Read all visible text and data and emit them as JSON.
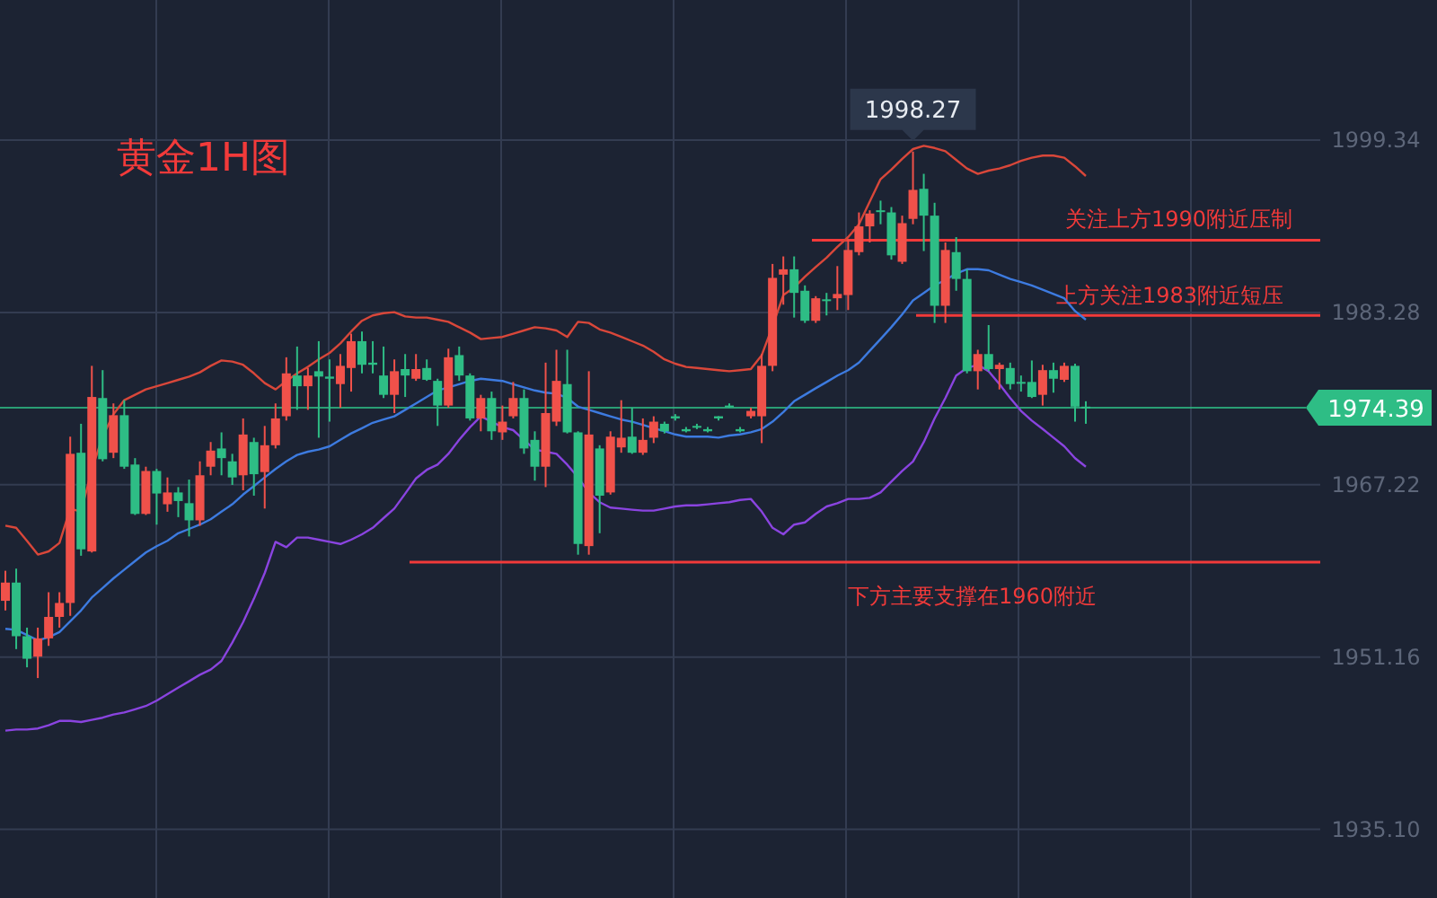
{
  "chart_data": {
    "type": "candlestick",
    "title": "黄金1H图",
    "categories": [
      null,
      null,
      null,
      null,
      null,
      null,
      null,
      null,
      null,
      null,
      null,
      null,
      null,
      null,
      null,
      null,
      null,
      null,
      null,
      null,
      null,
      null,
      null,
      null,
      null,
      null,
      null,
      null,
      null,
      null,
      null,
      null,
      null,
      null,
      null,
      null,
      null,
      null,
      null,
      null,
      null,
      null,
      null,
      null,
      null,
      null,
      null,
      null,
      null,
      null,
      null,
      null,
      null,
      null,
      null,
      null,
      null,
      null,
      null,
      null,
      null,
      null,
      null,
      null,
      null,
      null,
      null,
      null,
      null,
      null,
      null,
      null,
      null,
      null,
      null,
      null,
      null,
      null,
      null,
      null,
      null,
      null,
      null,
      null,
      null,
      null,
      null,
      null,
      null,
      null,
      null,
      null,
      null,
      null,
      null,
      null,
      null,
      null,
      null,
      null,
      null,
      null,
      null,
      null,
      null,
      null,
      null,
      null,
      null,
      null,
      null,
      null,
      null,
      null,
      null,
      null,
      null,
      null,
      null,
      null,
      null,
      null,
      null,
      null,
      null,
      null,
      null,
      null,
      null,
      null,
      null,
      null,
      null
    ],
    "ohlc": [
      [
        1956.4,
        1959.2,
        1955.5,
        1958.1
      ],
      [
        1958.1,
        1959.4,
        1951.9,
        1953.1
      ],
      [
        1953.1,
        1953.9,
        1950.2,
        1951.0
      ],
      [
        1951.2,
        1953.9,
        1949.2,
        1952.9
      ],
      [
        1952.9,
        1957.2,
        1952.2,
        1954.9
      ],
      [
        1954.9,
        1957.2,
        1953.9,
        1956.2
      ],
      [
        1956.2,
        1971.7,
        1955.0,
        1970.1
      ],
      [
        1970.2,
        1972.9,
        1960.6,
        1961.2
      ],
      [
        1961.0,
        1978.3,
        1960.9,
        1975.4
      ],
      [
        1975.3,
        1977.9,
        1969.4,
        1969.6
      ],
      [
        1970.2,
        1974.8,
        1969.7,
        1973.7
      ],
      [
        1973.7,
        1975.1,
        1968.7,
        1968.9
      ],
      [
        1969.1,
        1969.7,
        1964.4,
        1964.5
      ],
      [
        1964.5,
        1968.9,
        1964.4,
        1968.5
      ],
      [
        1968.5,
        1968.7,
        1963.5,
        1966.4
      ],
      [
        1965.4,
        1967.9,
        1964.7,
        1966.5
      ],
      [
        1966.5,
        1967.0,
        1964.2,
        1965.7
      ],
      [
        1965.5,
        1967.7,
        1962.4,
        1963.9
      ],
      [
        1963.9,
        1969.4,
        1963.4,
        1968.1
      ],
      [
        1968.9,
        1971.2,
        1968.1,
        1970.4
      ],
      [
        1970.6,
        1972.1,
        1968.1,
        1969.7
      ],
      [
        1969.4,
        1970.1,
        1967.2,
        1967.9
      ],
      [
        1968.1,
        1973.4,
        1966.7,
        1971.9
      ],
      [
        1971.2,
        1971.6,
        1966.2,
        1968.2
      ],
      [
        1968.4,
        1972.7,
        1965.0,
        1970.9
      ],
      [
        1970.9,
        1974.8,
        1970.6,
        1973.4
      ],
      [
        1973.6,
        1979.1,
        1973.2,
        1977.6
      ],
      [
        1977.4,
        1980.1,
        1974.2,
        1976.4
      ],
      [
        1976.4,
        1978.1,
        1974.2,
        1977.4
      ],
      [
        1977.8,
        1980.6,
        1971.6,
        1977.3
      ],
      [
        1977.3,
        1978.9,
        1973.1,
        1977.1
      ],
      [
        1976.6,
        1979.4,
        1974.4,
        1978.3
      ],
      [
        1978.1,
        1981.3,
        1975.9,
        1980.6
      ],
      [
        1980.6,
        1981.5,
        1977.6,
        1978.4
      ],
      [
        1978.6,
        1980.6,
        1977.6,
        1978.4
      ],
      [
        1977.4,
        1980.1,
        1975.3,
        1975.6
      ],
      [
        1975.6,
        1978.9,
        1973.9,
        1977.8
      ],
      [
        1978.0,
        1979.4,
        1975.4,
        1977.4
      ],
      [
        1977.1,
        1979.4,
        1976.9,
        1978.0
      ],
      [
        1978.1,
        1978.9,
        1976.9,
        1977.0
      ],
      [
        1976.9,
        1977.1,
        1972.7,
        1974.6
      ],
      [
        1974.6,
        1979.9,
        1974.4,
        1979.1
      ],
      [
        1979.3,
        1980.1,
        1976.9,
        1977.4
      ],
      [
        1977.4,
        1977.6,
        1973.2,
        1973.4
      ],
      [
        1973.4,
        1975.6,
        1972.2,
        1975.3
      ],
      [
        1975.3,
        1975.9,
        1971.4,
        1972.2
      ],
      [
        1972.1,
        1974.6,
        1971.4,
        1973.1
      ],
      [
        1973.6,
        1976.8,
        1973.4,
        1975.3
      ],
      [
        1975.3,
        1976.1,
        1970.1,
        1970.6
      ],
      [
        1971.4,
        1972.2,
        1967.6,
        1968.9
      ],
      [
        1968.9,
        1978.6,
        1967.0,
        1973.9
      ],
      [
        1973.1,
        1979.8,
        1972.7,
        1976.9
      ],
      [
        1976.6,
        1979.8,
        1972.0,
        1972.1
      ],
      [
        1972.1,
        1972.2,
        1960.7,
        1961.7
      ],
      [
        1961.5,
        1977.8,
        1960.7,
        1971.9
      ],
      [
        1970.6,
        1970.9,
        1962.7,
        1966.2
      ],
      [
        1966.5,
        1972.2,
        1966.3,
        1971.7
      ],
      [
        1970.7,
        1975.1,
        1970.2,
        1971.6
      ],
      [
        1971.7,
        1974.4,
        1970.1,
        1970.2
      ],
      [
        1970.2,
        1973.4,
        1970.0,
        1971.4
      ],
      [
        1971.6,
        1973.6,
        1971.1,
        1973.1
      ],
      [
        1972.9,
        1973.1,
        1972.0,
        1972.2
      ],
      [
        1973.6,
        1973.8,
        1973.2,
        1973.4
      ],
      [
        1972.4,
        1972.6,
        1972.1,
        1972.2
      ],
      [
        1972.7,
        1972.9,
        1972.4,
        1972.6
      ],
      [
        1972.4,
        1972.6,
        1972.1,
        1972.2
      ],
      [
        1973.6,
        1973.6,
        1973.2,
        1973.4
      ],
      [
        1974.6,
        1974.8,
        1974.4,
        1974.5
      ],
      [
        1972.4,
        1972.6,
        1972.1,
        1972.2
      ],
      [
        1973.6,
        1974.4,
        1973.4,
        1974.1
      ],
      [
        1973.6,
        1979.4,
        1971.1,
        1978.3
      ],
      [
        1978.3,
        1987.8,
        1977.8,
        1986.5
      ],
      [
        1986.8,
        1988.5,
        1984.0,
        1987.3
      ],
      [
        1987.3,
        1988.5,
        1982.8,
        1985.1
      ],
      [
        1985.3,
        1985.8,
        1982.3,
        1982.5
      ],
      [
        1982.5,
        1984.8,
        1982.3,
        1984.6
      ],
      [
        1984.5,
        1985.1,
        1983.0,
        1984.4
      ],
      [
        1984.6,
        1987.6,
        1983.5,
        1985.0
      ],
      [
        1984.9,
        1990.1,
        1983.5,
        1989.1
      ],
      [
        1988.9,
        1992.6,
        1988.6,
        1991.3
      ],
      [
        1991.3,
        1992.8,
        1989.8,
        1992.5
      ],
      [
        1992.8,
        1993.7,
        1991.5,
        1992.7
      ],
      [
        1992.6,
        1993.1,
        1988.2,
        1988.6
      ],
      [
        1988.0,
        1992.3,
        1987.8,
        1991.6
      ],
      [
        1992.0,
        1998.27,
        1991.5,
        1994.7
      ],
      [
        1994.8,
        1996.2,
        1989.0,
        1992.3
      ],
      [
        1992.3,
        1993.5,
        1982.3,
        1983.9
      ],
      [
        1983.9,
        1989.8,
        1982.3,
        1989.1
      ],
      [
        1988.9,
        1990.3,
        1985.3,
        1986.4
      ],
      [
        1986.4,
        1987.3,
        1977.6,
        1977.8
      ],
      [
        1977.8,
        1979.8,
        1976.1,
        1979.4
      ],
      [
        1979.4,
        1982.1,
        1977.8,
        1978.0
      ],
      [
        1978.0,
        1978.6,
        1976.1,
        1978.4
      ],
      [
        1978.1,
        1978.6,
        1976.1,
        1976.6
      ],
      [
        1976.8,
        1977.4,
        1975.9,
        1976.7
      ],
      [
        1976.8,
        1978.8,
        1975.3,
        1975.4
      ],
      [
        1975.6,
        1978.4,
        1974.6,
        1977.9
      ],
      [
        1977.9,
        1978.6,
        1975.8,
        1977.1
      ],
      [
        1977.0,
        1978.6,
        1976.8,
        1978.3
      ],
      [
        1978.3,
        1978.5,
        1973.1,
        1974.5
      ],
      [
        1974.5,
        1975.0,
        1972.9,
        1974.39
      ],
      null,
      null,
      null,
      null,
      null,
      null,
      null,
      null,
      null,
      null,
      null,
      null,
      null,
      null,
      null,
      null,
      null,
      null,
      null,
      null,
      null,
      null,
      null,
      null,
      null,
      null,
      null,
      null,
      null,
      null,
      null,
      null
    ],
    "colors": [
      "#f0514a",
      "#2ebd85",
      "#2ebd85",
      "#f0514a",
      "#f0514a",
      "#f0514a",
      "#f0514a",
      "#2ebd85",
      "#f0514a",
      "#2ebd85",
      "#f0514a",
      "#2ebd85",
      "#2ebd85",
      "#f0514a",
      "#2ebd85",
      "#f0514a",
      "#2ebd85",
      "#2ebd85",
      "#f0514a",
      "#f0514a",
      "#2ebd85",
      "#2ebd85",
      "#f0514a",
      "#2ebd85",
      "#f0514a",
      "#f0514a",
      "#f0514a",
      "#2ebd85",
      "#f0514a",
      "#2ebd85",
      "#2ebd85",
      "#f0514a",
      "#f0514a",
      "#2ebd85",
      "#2ebd85",
      "#2ebd85",
      "#f0514a",
      "#2ebd85",
      "#f0514a",
      "#2ebd85",
      "#2ebd85",
      "#f0514a",
      "#2ebd85",
      "#2ebd85",
      "#f0514a",
      "#2ebd85",
      "#f0514a",
      "#f0514a",
      "#2ebd85",
      "#2ebd85",
      "#f0514a",
      "#f0514a",
      "#2ebd85",
      "#2ebd85",
      "#f0514a",
      "#2ebd85",
      "#f0514a",
      "#f0514a",
      "#2ebd85",
      "#f0514a",
      "#f0514a",
      "#2ebd85",
      "#2ebd85",
      "#2ebd85",
      "#2ebd85",
      "#2ebd85",
      "#2ebd85",
      "#2ebd85",
      "#2ebd85",
      "#f0514a",
      "#f0514a",
      "#f0514a",
      "#f0514a",
      "#2ebd85",
      "#2ebd85",
      "#f0514a",
      "#2ebd85",
      "#f0514a",
      "#f0514a",
      "#f0514a",
      "#f0514a",
      "#2ebd85",
      "#2ebd85",
      "#f0514a",
      "#f0514a",
      "#2ebd85",
      "#2ebd85",
      "#f0514a",
      "#2ebd85",
      "#2ebd85",
      "#f0514a",
      "#2ebd85",
      "#f0514a",
      "#2ebd85",
      "#2ebd85",
      "#2ebd85",
      "#f0514a",
      "#2ebd85",
      "#f0514a",
      "#2ebd85",
      "#2ebd85",
      null,
      null,
      null,
      null,
      null,
      null,
      null,
      null,
      null,
      null,
      null,
      null,
      null,
      null,
      null,
      null,
      null,
      null,
      null,
      null,
      null,
      null,
      null,
      null,
      null,
      null,
      null,
      null,
      null,
      null,
      null,
      null
    ],
    "series": [
      {
        "type": "line",
        "color": "#d9473a",
        "values": [
          1963.4,
          1963.2,
          1962.0,
          1960.7,
          1961.0,
          1961.8,
          1965.0,
          1964.7,
          1968.6,
          1971.7,
          1973.8,
          1975.1,
          1975.6,
          1976.1,
          1976.4,
          1976.7,
          1977.0,
          1977.3,
          1977.7,
          1978.3,
          1978.8,
          1978.7,
          1978.4,
          1977.6,
          1976.7,
          1976.1,
          1976.9,
          1977.6,
          1978.2,
          1978.9,
          1979.5,
          1980.4,
          1981.5,
          1982.5,
          1983.0,
          1983.2,
          1983.3,
          1982.9,
          1982.8,
          1982.8,
          1982.6,
          1982.4,
          1981.9,
          1981.4,
          1980.8,
          1980.9,
          1981.0,
          1981.3,
          1981.6,
          1981.9,
          1981.8,
          1981.6,
          1981.0,
          1982.4,
          1982.3,
          1981.7,
          1981.4,
          1981.0,
          1980.6,
          1980.2,
          1979.6,
          1978.9,
          1978.5,
          1978.2,
          1978.1,
          1978.0,
          1977.9,
          1977.8,
          1977.9,
          1978.0,
          1979.3,
          1982.0,
          1984.9,
          1985.6,
          1986.6,
          1987.5,
          1988.4,
          1989.4,
          1990.3,
          1991.5,
          1993.6,
          1995.7,
          1996.6,
          1997.6,
          1998.5,
          1998.8,
          1998.6,
          1998.3,
          1997.5,
          1996.7,
          1996.2,
          1996.5,
          1996.7,
          1997.0,
          1997.4,
          1997.7,
          1997.9,
          1997.9,
          1997.7,
          1996.9,
          1996.0,
          null,
          null,
          null,
          null,
          null,
          null,
          null,
          null,
          null,
          null,
          null,
          null,
          null,
          null,
          null,
          null,
          null,
          null,
          null,
          null,
          null,
          null,
          null,
          null,
          null,
          null,
          null,
          null,
          null,
          null,
          null,
          null
        ]
      },
      {
        "type": "line",
        "color": "#3d7be0",
        "values": [
          1953.8,
          1953.7,
          1953.2,
          1952.7,
          1953.0,
          1953.5,
          1954.5,
          1955.5,
          1956.7,
          1957.6,
          1958.5,
          1959.3,
          1960.1,
          1960.9,
          1961.5,
          1962.0,
          1962.7,
          1963.1,
          1963.5,
          1964.0,
          1964.7,
          1965.4,
          1966.3,
          1967.1,
          1967.9,
          1968.7,
          1969.4,
          1970.0,
          1970.3,
          1970.5,
          1970.8,
          1971.4,
          1972.0,
          1972.5,
          1973.0,
          1973.3,
          1973.6,
          1974.2,
          1974.8,
          1975.4,
          1976.0,
          1976.3,
          1976.6,
          1976.9,
          1977.1,
          1977.0,
          1976.9,
          1976.6,
          1976.3,
          1976.0,
          1975.8,
          1975.7,
          1975.3,
          1974.5,
          1974.2,
          1973.9,
          1973.6,
          1973.3,
          1973.1,
          1972.8,
          1972.5,
          1972.2,
          1971.9,
          1971.7,
          1971.7,
          1971.7,
          1971.6,
          1971.8,
          1971.9,
          1972.1,
          1972.4,
          1973.1,
          1974.0,
          1975.0,
          1975.6,
          1976.2,
          1976.8,
          1977.4,
          1977.9,
          1978.6,
          1979.7,
          1980.8,
          1981.9,
          1983.1,
          1984.4,
          1985.1,
          1985.8,
          1986.3,
          1986.9,
          1987.3,
          1987.3,
          1987.2,
          1986.8,
          1986.4,
          1986.1,
          1985.8,
          1985.4,
          1985.0,
          1984.6,
          1983.4,
          1982.6,
          null,
          null,
          null,
          null,
          null,
          null,
          null,
          null,
          null,
          null,
          null,
          null,
          null,
          null,
          null,
          null,
          null,
          null,
          null,
          null,
          null,
          null,
          null,
          null,
          null,
          null,
          null,
          null,
          null,
          null,
          null,
          null
        ]
      },
      {
        "type": "line",
        "color": "#8a44e0",
        "values": [
          1944.3,
          1944.4,
          1944.4,
          1944.5,
          1944.8,
          1945.2,
          1945.2,
          1945.1,
          1945.3,
          1945.5,
          1945.8,
          1946.0,
          1946.3,
          1946.6,
          1947.1,
          1947.7,
          1948.3,
          1948.9,
          1949.5,
          1950.0,
          1950.8,
          1952.5,
          1954.4,
          1956.6,
          1959.0,
          1961.9,
          1961.4,
          1962.3,
          1962.3,
          1962.1,
          1961.9,
          1961.7,
          1962.1,
          1962.6,
          1963.2,
          1964.1,
          1965.0,
          1966.4,
          1967.8,
          1968.6,
          1969.1,
          1970.1,
          1971.4,
          1972.6,
          1973.6,
          1973.1,
          1972.6,
          1972.3,
          1971.4,
          1970.5,
          1970.3,
          1970.1,
          1969.1,
          1967.9,
          1966.5,
          1965.6,
          1965.1,
          1965.0,
          1964.9,
          1964.8,
          1964.8,
          1965.0,
          1965.2,
          1965.3,
          1965.3,
          1965.4,
          1965.5,
          1965.6,
          1965.8,
          1965.9,
          1964.7,
          1963.2,
          1962.6,
          1963.5,
          1963.7,
          1964.5,
          1965.2,
          1965.5,
          1965.9,
          1965.9,
          1966.0,
          1966.5,
          1967.5,
          1968.5,
          1969.4,
          1971.2,
          1973.4,
          1975.3,
          1977.4,
          1978.1,
          1978.4,
          1977.8,
          1976.6,
          1975.3,
          1974.1,
          1973.2,
          1972.4,
          1971.6,
          1970.8,
          1969.7,
          1968.9,
          null,
          null,
          null,
          null,
          null,
          null,
          null,
          null,
          null,
          null,
          null,
          null,
          null,
          null,
          null,
          null,
          null,
          null,
          null,
          null,
          null,
          null,
          null,
          null,
          null,
          null,
          null,
          null,
          null,
          null,
          null,
          null
        ]
      }
    ],
    "ylim": [
      1928.7,
      2012.4
    ],
    "yticks": [
      1999.34,
      1983.28,
      1967.22,
      1951.16,
      {
        "value": 1935.1,
        "label": "1935.10"
      }
    ],
    "tick_labels": "y",
    "grid": true,
    "ref_lines": [
      {
        "axis": "y",
        "value": 1990,
        "label": "关注上方1990附近压制",
        "color": "#f23a3a"
      },
      {
        "axis": "y",
        "value": 1983,
        "label": "上方关注1983附近短压",
        "color": "#f23a3a"
      },
      {
        "axis": "y",
        "value": 1960,
        "label": "下方主要支撑在1960附近",
        "color": "#f23a3a"
      },
      {
        "axis": "y",
        "value": 1974.39,
        "label": "1974.39",
        "color": "#2ebd85"
      }
    ],
    "annotations": [
      {
        "text": "1998.27",
        "y": 1998.27
      }
    ]
  }
}
